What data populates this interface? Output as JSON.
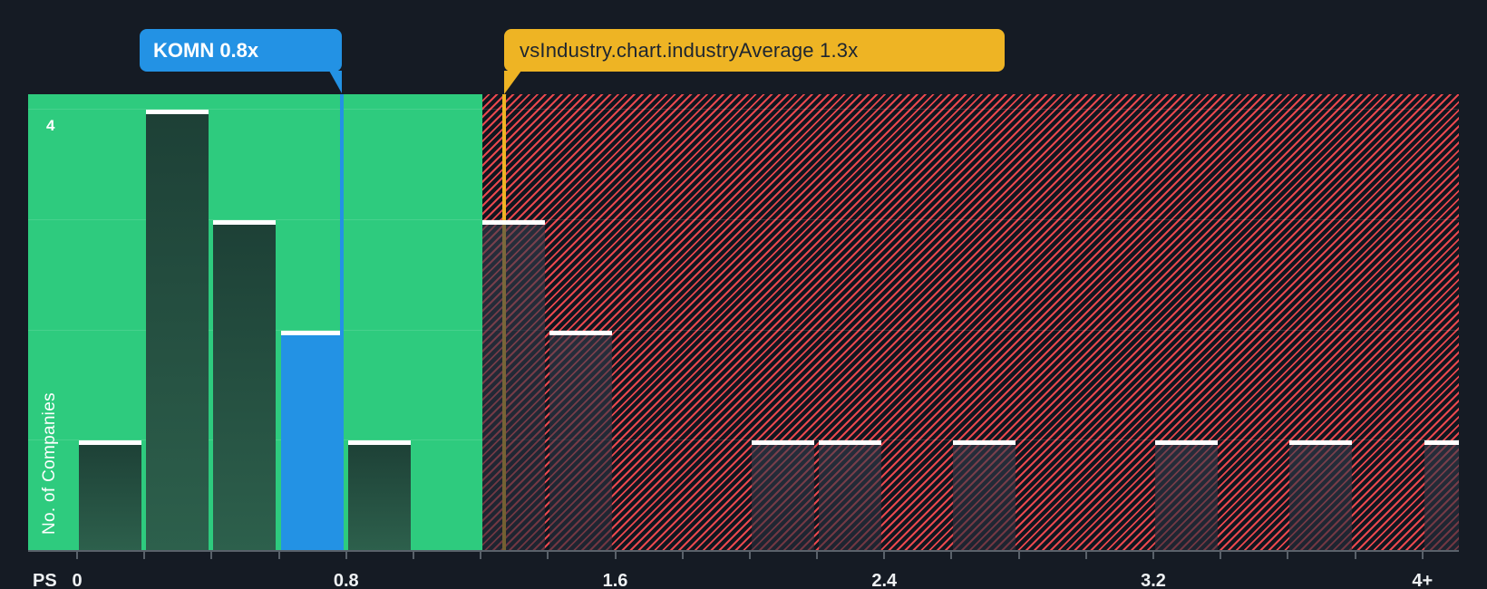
{
  "company_tooltip": {
    "label": "KOMN 0.8x"
  },
  "industry_tooltip": {
    "label": "vsIndustry.chart.industryAverage 1.3x"
  },
  "y_axis": {
    "title": "No. of Companies",
    "top_tick": "4"
  },
  "x_axis": {
    "title": "PS",
    "tick_labels": [
      {
        "text": "0",
        "value": 0.0
      },
      {
        "text": "0.8",
        "value": 0.8
      },
      {
        "text": "1.6",
        "value": 1.6
      },
      {
        "text": "2.4",
        "value": 2.4
      },
      {
        "text": "3.2",
        "value": 3.2
      },
      {
        "text": "4+",
        "value": 4.0
      }
    ]
  },
  "colors": {
    "background": "#151b24",
    "green_zone": "#2ecb7e",
    "red_hatch_stripe": "#e8484e",
    "company_blue": "#2392e4",
    "industry_yellow": "#eeb424",
    "bar_cap_white": "#ffffff"
  },
  "chart_data": {
    "type": "bar",
    "subtype": "histogram",
    "xlabel": "PS",
    "ylabel": "No. of Companies",
    "bin_width": 0.2,
    "xlim": [
      0,
      4.25
    ],
    "ylim": [
      0,
      4.15
    ],
    "grid": "horizontal",
    "y_gridlines": [
      1,
      2,
      3,
      4
    ],
    "x_tick_step": 0.2,
    "x_tick_count": 21,
    "bins": [
      {
        "x0": 0.0,
        "count": 1
      },
      {
        "x0": 0.2,
        "count": 4
      },
      {
        "x0": 0.4,
        "count": 3
      },
      {
        "x0": 0.6,
        "count": 2,
        "role": "company"
      },
      {
        "x0": 0.8,
        "count": 1
      },
      {
        "x0": 1.0,
        "count": 0
      },
      {
        "x0": 1.2,
        "count": 3
      },
      {
        "x0": 1.4,
        "count": 2
      },
      {
        "x0": 1.6,
        "count": 0
      },
      {
        "x0": 1.8,
        "count": 0
      },
      {
        "x0": 2.0,
        "count": 1
      },
      {
        "x0": 2.2,
        "count": 1
      },
      {
        "x0": 2.4,
        "count": 0
      },
      {
        "x0": 2.6,
        "count": 1
      },
      {
        "x0": 2.8,
        "count": 0
      },
      {
        "x0": 3.0,
        "count": 0
      },
      {
        "x0": 3.2,
        "count": 1
      },
      {
        "x0": 3.4,
        "count": 0
      },
      {
        "x0": 3.6,
        "count": 1
      },
      {
        "x0": 3.8,
        "count": 0
      },
      {
        "x0": 4.0,
        "count": 1,
        "clipped": true
      }
    ],
    "markers": {
      "company": {
        "name": "KOMN",
        "display": "0.8x",
        "x": 0.79
      },
      "industry_average": {
        "display": "1.3x",
        "x": 1.27
      }
    },
    "zones": {
      "below_average_green": [
        0,
        1.2
      ],
      "above_average_red_hatched": [
        1.2,
        4.25
      ]
    },
    "legend": "none"
  }
}
